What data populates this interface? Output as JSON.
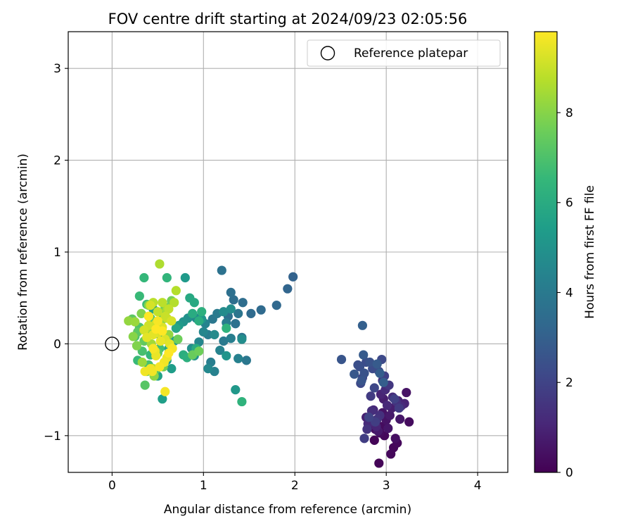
{
  "chart_data": {
    "type": "scatter",
    "title": "FOV centre drift starting at 2024/09/23 02:05:56",
    "xlabel": "Angular distance from reference (arcmin)",
    "ylabel": "Rotation from reference (arcmin)",
    "xlim": [
      -0.48,
      4.33
    ],
    "ylim": [
      -1.4,
      3.4
    ],
    "x_ticks": [
      0,
      1,
      2,
      3,
      4
    ],
    "x_tick_labels": [
      "0",
      "1",
      "2",
      "3",
      "4"
    ],
    "y_ticks": [
      -1,
      0,
      1,
      2,
      3
    ],
    "y_tick_labels": [
      "−1",
      "0",
      "1",
      "2",
      "3"
    ],
    "grid": true,
    "legend": {
      "location": "top-right",
      "entries": [
        "Reference platepar"
      ]
    },
    "reference_point": {
      "label": "Reference platepar",
      "x": 0,
      "y": 0
    },
    "colorbar": {
      "label": "Hours from first FF file",
      "range": [
        0,
        9.8
      ],
      "ticks": [
        0,
        2,
        4,
        6,
        8
      ],
      "tick_labels": [
        "0",
        "2",
        "4",
        "6",
        "8"
      ],
      "colormap": "viridis"
    },
    "colormap_stops": [
      "#440154",
      "#482878",
      "#3e4989",
      "#31688e",
      "#26828e",
      "#1f9e89",
      "#35b779",
      "#6ece58",
      "#b5de2b",
      "#fde725"
    ],
    "series": [
      {
        "x": [
          2.92,
          2.87,
          3.08,
          3.12,
          3.05,
          2.98,
          2.93,
          3.25,
          2.95,
          3.1,
          2.88,
          3.0,
          3.22,
          2.96,
          3.02,
          2.85,
          3.15,
          3.04,
          2.91,
          3.18,
          2.82,
          3.06,
          2.97,
          2.78,
          3.13,
          2.89,
          3.2,
          2.94,
          2.86,
          3.01,
          3.16,
          2.8,
          2.99,
          3.07,
          2.84,
          2.93,
          3.11,
          2.9,
          2.79,
          3.03,
          2.96,
          2.83,
          3.14,
          2.88,
          2.76,
          2.98,
          3.09,
          2.81,
          2.74,
          2.92,
          2.87,
          2.72,
          2.95,
          2.85,
          2.78,
          2.71,
          2.69,
          2.76,
          2.82,
          2.73,
          2.51,
          2.65,
          2.75,
          2.9,
          2.93,
          2.97,
          2.74
        ],
        "y": [
          -1.3,
          -1.05,
          -1.13,
          -1.08,
          -1.2,
          -1.0,
          -0.97,
          -0.85,
          -0.9,
          -1.03,
          -0.93,
          -0.83,
          -0.53,
          -0.75,
          -0.92,
          -0.88,
          -0.82,
          -0.78,
          -0.95,
          -0.66,
          -0.85,
          -0.7,
          -0.6,
          -0.8,
          -0.62,
          -0.9,
          -0.65,
          -0.55,
          -0.72,
          -0.67,
          -0.68,
          -0.87,
          -0.5,
          -0.58,
          -0.73,
          -0.78,
          -0.63,
          -0.82,
          -0.93,
          -0.45,
          -0.4,
          -0.57,
          -0.7,
          -0.85,
          -1.03,
          -0.35,
          -0.6,
          -0.8,
          -0.37,
          -0.3,
          -0.48,
          -0.43,
          -0.17,
          -0.27,
          -0.2,
          -0.25,
          -0.23,
          -0.32,
          -0.2,
          -0.4,
          -0.17,
          -0.33,
          -0.12,
          -0.22,
          -0.32,
          -0.42,
          0.2
        ],
        "color_values": [
          0.1,
          0.1,
          0.15,
          0.2,
          0.2,
          0.2,
          0.3,
          0.3,
          0.3,
          0.4,
          0.4,
          0.5,
          0.5,
          0.5,
          0.6,
          0.6,
          0.6,
          0.7,
          0.7,
          0.7,
          0.8,
          0.8,
          0.8,
          0.9,
          0.9,
          1.0,
          1.0,
          1.0,
          1.1,
          1.1,
          1.2,
          1.2,
          1.2,
          1.3,
          1.3,
          1.4,
          1.4,
          1.5,
          1.5,
          1.6,
          1.6,
          1.7,
          1.7,
          1.8,
          1.8,
          1.9,
          1.9,
          2.0,
          2.0,
          2.1,
          2.1,
          2.2,
          2.2,
          2.3,
          2.3,
          2.4,
          2.4,
          2.5,
          2.5,
          2.6,
          2.6,
          2.7,
          2.8,
          2.8,
          2.9,
          2.9,
          3.0
        ]
      },
      {
        "x": [
          1.98,
          1.92,
          1.8,
          1.63,
          1.52,
          1.43,
          1.33,
          1.3,
          1.27,
          1.2,
          1.35,
          1.38,
          1.42,
          1.47,
          1.1,
          1.15,
          1.22,
          1.25,
          1.05,
          1.08,
          1.3,
          1.38,
          1.12,
          1.18,
          1.02,
          1.0,
          0.95,
          0.92,
          1.05,
          1.12,
          1.22,
          1.42,
          1.3,
          0.87,
          0.83,
          0.9,
          0.78,
          1.25,
          0.98,
          1.35
        ],
        "y": [
          0.73,
          0.6,
          0.42,
          0.37,
          0.33,
          0.45,
          0.48,
          0.56,
          0.3,
          0.8,
          0.22,
          0.33,
          0.07,
          -0.18,
          0.27,
          0.33,
          0.03,
          0.23,
          0.1,
          -0.2,
          0.06,
          -0.16,
          -0.3,
          -0.07,
          0.22,
          0.13,
          0.02,
          0.28,
          -0.27,
          0.1,
          0.35,
          0.05,
          0.38,
          -0.05,
          0.28,
          -0.13,
          0.24,
          -0.13,
          0.27,
          -0.5
        ],
        "color_values": [
          3.1,
          3.2,
          3.3,
          3.4,
          3.4,
          3.5,
          3.5,
          3.6,
          3.6,
          3.7,
          3.7,
          3.8,
          3.8,
          3.9,
          3.9,
          4.0,
          4.0,
          4.1,
          4.1,
          4.2,
          4.2,
          4.3,
          4.3,
          4.4,
          4.4,
          4.5,
          4.5,
          4.6,
          4.6,
          4.7,
          4.7,
          4.8,
          4.8,
          4.9,
          4.9,
          5.0,
          5.0,
          5.1,
          5.1,
          5.2
        ]
      },
      {
        "x": [
          0.8,
          0.73,
          0.65,
          0.68,
          0.6,
          0.55,
          0.5,
          0.45,
          0.52,
          0.58,
          0.62,
          0.7,
          0.85,
          0.9,
          0.92,
          0.88,
          0.95,
          0.78,
          0.82,
          0.98,
          1.25,
          1.42,
          0.6,
          0.48,
          0.42,
          0.35,
          0.3,
          0.28,
          0.38,
          0.45,
          0.52,
          0.55,
          0.4,
          0.33,
          0.25,
          0.3,
          0.42,
          0.48,
          0.36,
          0.22,
          0.28,
          0.35,
          0.5,
          0.58,
          0.88,
          0.95,
          0.72,
          0.65,
          0.56,
          0.44,
          0.38,
          0.32,
          0.27,
          0.23,
          0.4,
          0.46,
          0.53,
          0.62,
          0.18,
          0.25,
          0.33,
          0.37,
          0.43,
          0.6,
          0.4,
          0.45
        ],
        "y": [
          0.72,
          0.2,
          -0.27,
          0.03,
          -0.18,
          -0.6,
          -0.35,
          0.38,
          0.1,
          0.28,
          -0.05,
          0.17,
          0.5,
          0.45,
          -0.05,
          0.33,
          0.25,
          -0.12,
          -0.15,
          0.35,
          0.17,
          -0.63,
          0.72,
          0.23,
          -0.12,
          0.72,
          0.52,
          -0.18,
          0.43,
          0.12,
          -0.05,
          0.33,
          -0.23,
          -0.08,
          0.08,
          0.18,
          0.28,
          -0.28,
          -0.45,
          0.27,
          0.13,
          0.03,
          -0.1,
          0.4,
          -0.12,
          -0.08,
          0.05,
          0.47,
          -0.25,
          0.18,
          -0.3,
          0.33,
          -0.02,
          0.08,
          0.42,
          -0.35,
          0.22,
          0.1,
          0.25,
          0.24,
          -0.2,
          0.15,
          0.0,
          0.37,
          0.3,
          -0.27
        ],
        "color_values": [
          5.3,
          5.3,
          5.4,
          5.4,
          5.5,
          5.5,
          5.6,
          5.6,
          5.7,
          5.7,
          5.8,
          5.8,
          5.9,
          5.9,
          6.0,
          6.0,
          6.1,
          6.1,
          6.2,
          6.2,
          6.3,
          6.3,
          6.4,
          6.4,
          6.5,
          6.5,
          6.6,
          6.6,
          6.7,
          6.7,
          6.8,
          6.8,
          6.9,
          6.9,
          7.0,
          7.0,
          7.1,
          7.1,
          7.2,
          7.3,
          7.3,
          7.4,
          7.4,
          7.5,
          7.5,
          7.6,
          7.6,
          7.7,
          7.7,
          7.8,
          7.8,
          7.9,
          7.9,
          8.0,
          8.0,
          8.1,
          8.1,
          8.2,
          8.2,
          8.3,
          8.3,
          8.4,
          8.4,
          8.5,
          8.5,
          8.6
        ]
      },
      {
        "x": [
          0.52,
          0.7,
          0.68,
          0.55,
          0.45,
          0.62,
          0.5,
          0.58,
          0.6,
          0.48,
          0.4,
          0.42,
          0.65,
          0.35,
          0.55,
          0.5,
          0.58,
          0.45,
          0.63,
          0.38,
          0.53,
          0.47,
          0.6,
          0.48,
          0.42,
          0.57,
          0.36,
          0.44,
          0.52,
          0.58,
          0.66,
          0.5,
          0.45,
          0.55,
          0.62,
          0.4,
          0.48
        ],
        "y": [
          0.87,
          0.58,
          0.45,
          0.45,
          0.45,
          0.38,
          0.35,
          0.3,
          0.28,
          0.22,
          0.2,
          0.42,
          0.25,
          0.15,
          0.18,
          0.12,
          0.05,
          0.1,
          0.0,
          0.07,
          0.03,
          -0.08,
          -0.15,
          -0.13,
          -0.27,
          -0.2,
          -0.3,
          -0.3,
          -0.25,
          -0.52,
          -0.05,
          0.25,
          -0.05,
          0.14,
          -0.1,
          0.3,
          0.16
        ],
        "color_values": [
          8.6,
          8.7,
          8.7,
          8.8,
          8.8,
          8.9,
          8.9,
          9.0,
          9.0,
          9.1,
          9.1,
          9.2,
          9.2,
          9.2,
          9.3,
          9.3,
          9.3,
          9.4,
          9.4,
          9.4,
          9.5,
          9.5,
          9.5,
          9.5,
          9.6,
          9.6,
          9.6,
          9.6,
          9.7,
          9.7,
          9.7,
          9.7,
          9.7,
          9.8,
          9.8,
          9.8,
          9.8
        ]
      }
    ]
  }
}
